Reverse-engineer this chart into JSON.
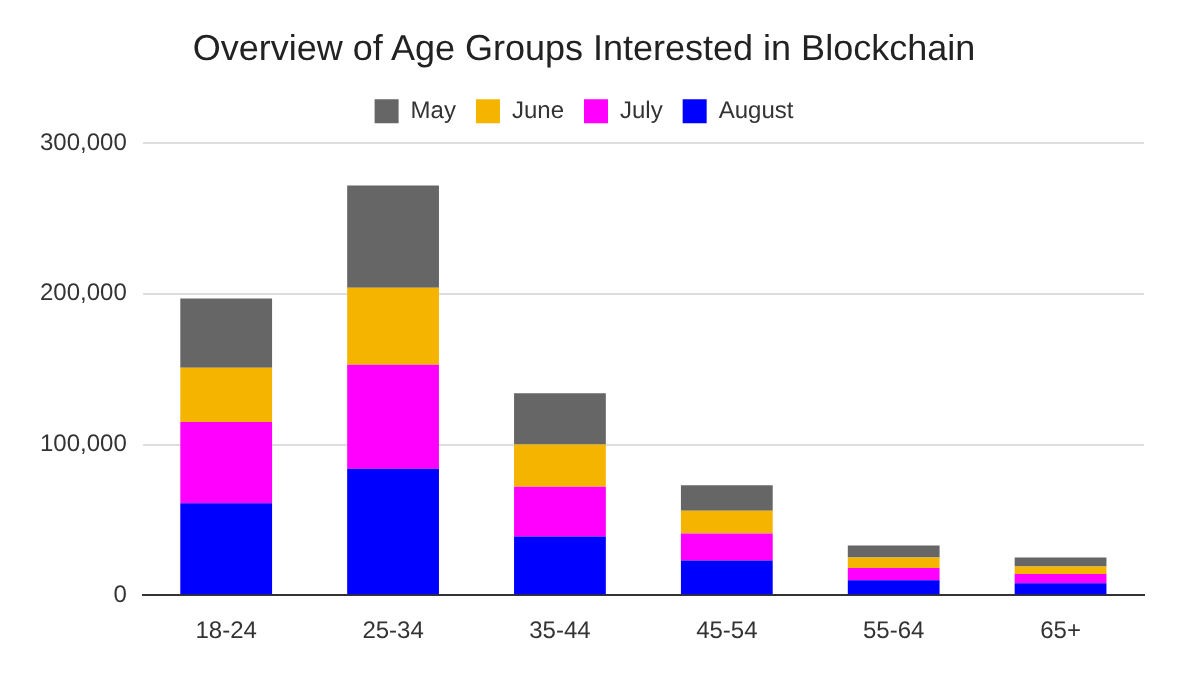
{
  "chart_data": {
    "type": "bar",
    "title": "Overview of Age Groups Interested in Blockchain",
    "categories": [
      "18-24",
      "25-34",
      "35-44",
      "45-54",
      "55-64",
      "65+"
    ],
    "stacked": true,
    "series": [
      {
        "name": "August",
        "color": "#0000ff",
        "values": [
          61000,
          84000,
          39000,
          23000,
          10000,
          8000
        ]
      },
      {
        "name": "July",
        "color": "#ff00ff",
        "values": [
          54000,
          69000,
          33000,
          18000,
          8000,
          6000
        ]
      },
      {
        "name": "June",
        "color": "#f4b400",
        "values": [
          36000,
          51000,
          28000,
          15000,
          7000,
          5000
        ]
      },
      {
        "name": "May",
        "color": "#666666",
        "values": [
          46000,
          68000,
          34000,
          17000,
          8000,
          6000
        ]
      }
    ],
    "ylim": [
      0,
      300000
    ],
    "yticks": [
      {
        "value": 0,
        "label": "0"
      },
      {
        "value": 100000,
        "label": "100,000"
      },
      {
        "value": 200000,
        "label": "200,000"
      },
      {
        "value": 300000,
        "label": "300,000"
      }
    ],
    "grid": "y",
    "legend": "top"
  }
}
